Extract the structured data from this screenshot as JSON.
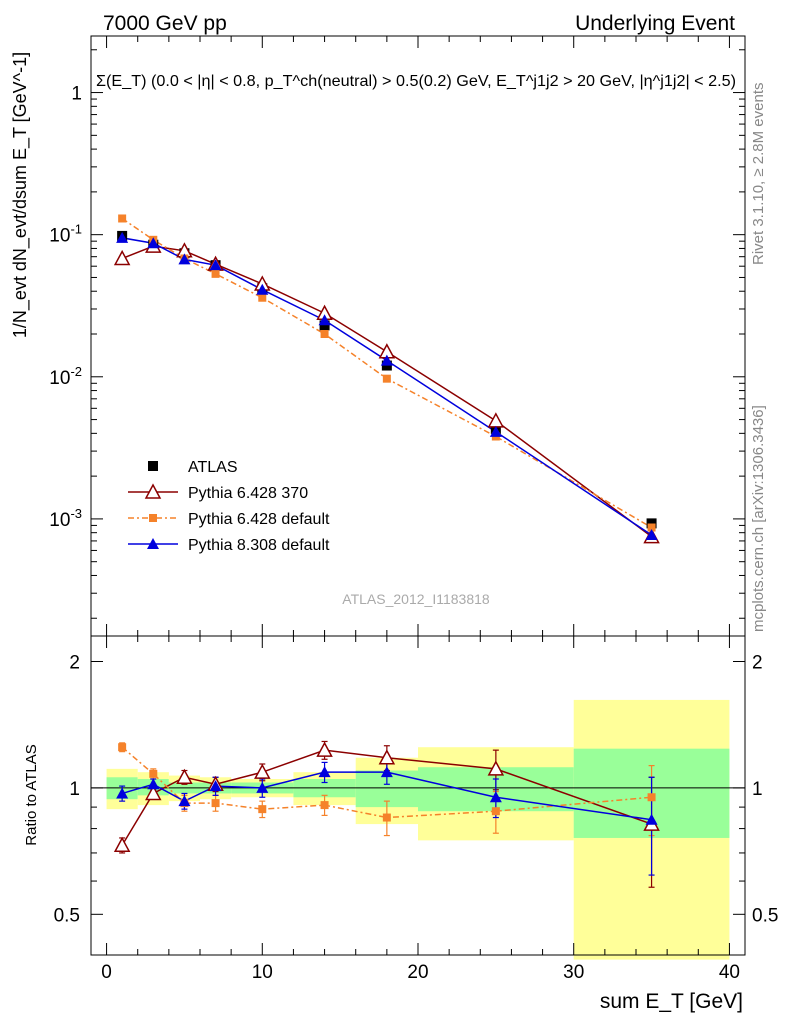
{
  "header": {
    "left": "7000 GeV pp",
    "right": "Underlying Event"
  },
  "side": {
    "rivet": "Rivet 3.1.10, ≥ 2.8M events",
    "mcplots": "mcplots.cern.ch [arXiv:1306.3436]"
  },
  "chart_data": [
    {
      "type": "scatter",
      "title": "Σ(E_T) (0.0 < |η| < 0.8, p_T^ch(neutral) > 0.5(0.2) GeV, E_T^j1j2 > 20 GeV, |η^j1j2| < 2.5)",
      "annotation": "ATLAS_2012_I1183818",
      "ylabel": "1/N_evt dN_evt/dsum E_T [GeV^-1]",
      "yscale": "log",
      "ylim": [
        0.00015,
        2.5
      ],
      "xlim": [
        -1,
        41
      ],
      "y_ticks": [
        "1",
        "10^-1",
        "10^-2",
        "10^-3"
      ],
      "legend_position": "lower-left",
      "legend": [
        "ATLAS",
        "Pythia 6.428 370",
        "Pythia 6.428 default",
        "Pythia 8.308 default"
      ],
      "series": [
        {
          "name": "ATLAS",
          "color": "#000000",
          "marker": "square",
          "x": [
            1,
            3,
            5,
            7,
            10,
            14,
            18,
            25,
            35
          ],
          "y": [
            0.098,
            0.085,
            0.074,
            0.061,
            0.042,
            0.023,
            0.012,
            0.0043,
            0.00093
          ]
        },
        {
          "name": "Pythia 6.428 370",
          "color": "#8b0000",
          "marker": "open-triangle",
          "x": [
            1,
            3,
            5,
            7,
            10,
            14,
            18,
            25,
            35
          ],
          "y": [
            0.068,
            0.083,
            0.077,
            0.062,
            0.045,
            0.028,
            0.015,
            0.0049,
            0.00075
          ]
        },
        {
          "name": "Pythia 6.428 default",
          "color": "#f5822a",
          "marker": "small-square",
          "x": [
            1,
            3,
            5,
            7,
            10,
            14,
            18,
            25,
            35
          ],
          "y": [
            0.13,
            0.092,
            0.068,
            0.053,
            0.036,
            0.02,
            0.0097,
            0.0038,
            0.00087
          ]
        },
        {
          "name": "Pythia 8.308 default",
          "color": "#0000dd",
          "marker": "filled-triangle",
          "x": [
            1,
            3,
            5,
            7,
            10,
            14,
            18,
            25,
            35
          ],
          "y": [
            0.095,
            0.087,
            0.067,
            0.061,
            0.041,
            0.025,
            0.013,
            0.0041,
            0.00077
          ]
        }
      ]
    },
    {
      "type": "scatter",
      "xlabel": "sum E_T [GeV]",
      "ylabel": "Ratio to ATLAS",
      "ylim": [
        0.4,
        2.3
      ],
      "xlim": [
        -1,
        41
      ],
      "x_ticks": [
        "0",
        "10",
        "20",
        "30",
        "40"
      ],
      "y_ticks": [
        "0.5",
        "1",
        "2"
      ],
      "bins": [
        {
          "x_range": [
            0,
            2
          ],
          "stat_band": [
            0.94,
            1.06
          ],
          "total_band": [
            0.89,
            1.11
          ]
        },
        {
          "x_range": [
            2,
            4
          ],
          "stat_band": [
            0.96,
            1.05
          ],
          "total_band": [
            0.91,
            1.09
          ]
        },
        {
          "x_range": [
            4,
            6
          ],
          "stat_band": [
            0.97,
            1.03
          ],
          "total_band": [
            0.93,
            1.07
          ]
        },
        {
          "x_range": [
            6,
            8
          ],
          "stat_band": [
            0.97,
            1.03
          ],
          "total_band": [
            0.94,
            1.06
          ]
        },
        {
          "x_range": [
            8,
            12
          ],
          "stat_band": [
            0.97,
            1.03
          ],
          "total_band": [
            0.95,
            1.05
          ]
        },
        {
          "x_range": [
            12,
            16
          ],
          "stat_band": [
            0.95,
            1.05
          ],
          "total_band": [
            0.91,
            1.09
          ]
        },
        {
          "x_range": [
            16,
            20
          ],
          "stat_band": [
            0.9,
            1.1
          ],
          "total_band": [
            0.82,
            1.18
          ]
        },
        {
          "x_range": [
            20,
            30
          ],
          "stat_band": [
            0.88,
            1.12
          ],
          "total_band": [
            0.75,
            1.25
          ]
        },
        {
          "x_range": [
            30,
            40
          ],
          "stat_band": [
            0.76,
            1.24
          ],
          "total_band": [
            0.39,
            1.62
          ]
        }
      ],
      "series": [
        {
          "name": "Pythia 6.428 370",
          "color": "#8b0000",
          "marker": "open-triangle",
          "x": [
            1,
            3,
            5,
            7,
            10,
            14,
            18,
            25,
            35
          ],
          "y": [
            0.73,
            0.97,
            1.06,
            1.02,
            1.09,
            1.23,
            1.18,
            1.11,
            0.82
          ],
          "err": [
            0.03,
            0.03,
            0.04,
            0.04,
            0.05,
            0.06,
            0.08,
            0.12,
            0.24
          ]
        },
        {
          "name": "Pythia 6.428 default",
          "color": "#f5822a",
          "marker": "small-square",
          "x": [
            1,
            3,
            5,
            7,
            10,
            14,
            18,
            25,
            35
          ],
          "y": [
            1.25,
            1.08,
            0.92,
            0.92,
            0.89,
            0.91,
            0.85,
            0.88,
            0.95
          ],
          "err": [
            0.03,
            0.03,
            0.04,
            0.04,
            0.04,
            0.05,
            0.08,
            0.1,
            0.18
          ]
        },
        {
          "name": "Pythia 8.308 default",
          "color": "#0000dd",
          "marker": "filled-triangle",
          "x": [
            1,
            3,
            5,
            7,
            10,
            14,
            18,
            25,
            35
          ],
          "y": [
            0.97,
            1.02,
            0.93,
            1.01,
            1.0,
            1.09,
            1.09,
            0.95,
            0.84
          ],
          "err": [
            0.04,
            0.03,
            0.04,
            0.05,
            0.05,
            0.06,
            0.07,
            0.1,
            0.22
          ]
        }
      ]
    }
  ]
}
